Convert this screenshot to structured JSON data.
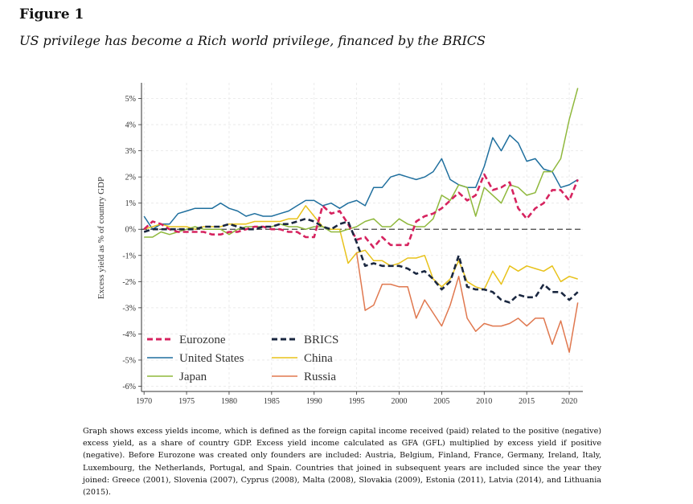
{
  "figure": {
    "label": "Figure 1",
    "title": "US privilege has become a Rich world privilege, financed by the BRICS",
    "caption": "Graph shows excess yields income, which is defined as the foreign capital income received (paid) related to the positive (negative) excess yield, as a share of country GDP. Excess yield income calculated as GFA (GFL) multiplied by excess yield if positive (negative). Before Eurozone was created only founders are included: Austria, Belgium, Finland, France, Germany, Ireland, Italy, Luxembourg, the Netherlands, Portugal, and Spain. Countries that joined in subsequent years are included since the year they joined: Greece (2001), Slovenia (2007), Cyprus (2008), Malta (2008), Slovakia (2009), Estonia (2011), Latvia (2014), and Lithuania (2015)."
  },
  "chart_data": {
    "type": "line",
    "title": "",
    "xlabel": "",
    "ylabel": "Excess yield as % of country GDP",
    "xlim": [
      1969.7,
      2021.6
    ],
    "ylim": [
      -6.2,
      5.6
    ],
    "xticks": [
      1970,
      1975,
      1980,
      1985,
      1990,
      1995,
      2000,
      2005,
      2010,
      2015,
      2020
    ],
    "yticks": [
      5,
      4,
      3,
      2,
      1,
      0,
      -1,
      -2,
      -3,
      -4,
      -5,
      -6
    ],
    "ytick_labels": [
      "5%",
      "4%",
      "3%",
      "2%",
      "1%",
      "0%",
      "-1%",
      "-2%",
      "-3%",
      "-4%",
      "-5%",
      "-6%"
    ],
    "grid": true,
    "reference_line": {
      "y": 0,
      "style": "dashed",
      "color": "#444444"
    },
    "legend_position": "bottom-left",
    "legend_order": [
      "Eurozone",
      "BRICS",
      "United States",
      "China",
      "Japan",
      "Russia"
    ],
    "series": [
      {
        "name": "Eurozone",
        "color": "#d6235f",
        "dashed": true,
        "width": 2.6,
        "x": [
          1970,
          1971,
          1972,
          1973,
          1974,
          1975,
          1976,
          1977,
          1978,
          1979,
          1980,
          1981,
          1982,
          1983,
          1984,
          1985,
          1986,
          1987,
          1988,
          1989,
          1990,
          1991,
          1992,
          1993,
          1994,
          1995,
          1996,
          1997,
          1998,
          1999,
          2000,
          2001,
          2002,
          2003,
          2004,
          2005,
          2006,
          2007,
          2008,
          2009,
          2010,
          2011,
          2012,
          2013,
          2014,
          2015,
          2016,
          2017,
          2018,
          2019,
          2020,
          2021
        ],
        "values": [
          0.0,
          0.3,
          0.2,
          0.0,
          -0.1,
          -0.1,
          -0.1,
          -0.1,
          -0.2,
          -0.2,
          -0.1,
          -0.1,
          0.0,
          0.1,
          0.1,
          0.0,
          0.0,
          -0.1,
          -0.1,
          -0.3,
          -0.3,
          0.9,
          0.6,
          0.7,
          0.2,
          -0.4,
          -0.3,
          -0.7,
          -0.3,
          -0.6,
          -0.6,
          -0.6,
          0.3,
          0.5,
          0.6,
          0.8,
          1.1,
          1.4,
          1.1,
          1.3,
          2.1,
          1.5,
          1.6,
          1.8,
          0.8,
          0.4,
          0.8,
          1.0,
          1.5,
          1.5,
          1.1,
          1.9
        ]
      },
      {
        "name": "BRICS",
        "color": "#1a2740",
        "dashed": true,
        "width": 2.6,
        "x": [
          1970,
          1971,
          1972,
          1973,
          1974,
          1975,
          1976,
          1977,
          1978,
          1979,
          1980,
          1981,
          1982,
          1983,
          1984,
          1985,
          1986,
          1987,
          1988,
          1989,
          1990,
          1991,
          1992,
          1993,
          1994,
          1995,
          1996,
          1997,
          1998,
          1999,
          2000,
          2001,
          2002,
          2003,
          2004,
          2005,
          2006,
          2007,
          2008,
          2009,
          2010,
          2011,
          2012,
          2013,
          2014,
          2015,
          2016,
          2017,
          2018,
          2019,
          2020,
          2021
        ],
        "values": [
          -0.1,
          0.0,
          0.0,
          0.0,
          0.0,
          0.0,
          0.0,
          0.1,
          0.1,
          0.1,
          0.2,
          0.1,
          0.0,
          0.0,
          0.1,
          0.1,
          0.2,
          0.2,
          0.3,
          0.4,
          0.3,
          0.1,
          0.0,
          0.2,
          0.3,
          -0.5,
          -1.4,
          -1.3,
          -1.4,
          -1.4,
          -1.4,
          -1.5,
          -1.7,
          -1.6,
          -1.9,
          -2.3,
          -2.0,
          -1.0,
          -2.2,
          -2.3,
          -2.3,
          -2.4,
          -2.7,
          -2.8,
          -2.5,
          -2.6,
          -2.6,
          -2.1,
          -2.4,
          -2.4,
          -2.7,
          -2.4
        ]
      },
      {
        "name": "United States",
        "color": "#1f6f9e",
        "dashed": false,
        "width": 1.5,
        "x": [
          1970,
          1971,
          1972,
          1973,
          1974,
          1975,
          1976,
          1977,
          1978,
          1979,
          1980,
          1981,
          1982,
          1983,
          1984,
          1985,
          1986,
          1987,
          1988,
          1989,
          1990,
          1991,
          1992,
          1993,
          1994,
          1995,
          1996,
          1997,
          1998,
          1999,
          2000,
          2001,
          2002,
          2003,
          2004,
          2005,
          2006,
          2007,
          2008,
          2009,
          2010,
          2011,
          2012,
          2013,
          2014,
          2015,
          2016,
          2017,
          2018,
          2019,
          2020,
          2021
        ],
        "values": [
          0.5,
          0.0,
          0.2,
          0.2,
          0.6,
          0.7,
          0.8,
          0.8,
          0.8,
          1.0,
          0.8,
          0.7,
          0.5,
          0.6,
          0.5,
          0.5,
          0.6,
          0.7,
          0.9,
          1.1,
          1.1,
          0.9,
          1.0,
          0.8,
          1.0,
          1.1,
          0.9,
          1.6,
          1.6,
          2.0,
          2.1,
          2.0,
          1.9,
          2.0,
          2.2,
          2.7,
          1.9,
          1.7,
          1.6,
          1.6,
          2.4,
          3.5,
          3.0,
          3.6,
          3.3,
          2.6,
          2.7,
          2.3,
          2.2,
          1.6,
          1.7,
          1.9
        ]
      },
      {
        "name": "China",
        "color": "#e8c21a",
        "dashed": false,
        "width": 1.5,
        "x": [
          1970,
          1971,
          1972,
          1973,
          1974,
          1975,
          1976,
          1977,
          1978,
          1979,
          1980,
          1981,
          1982,
          1983,
          1984,
          1985,
          1986,
          1987,
          1988,
          1989,
          1990,
          1991,
          1992,
          1993,
          1994,
          1995,
          1996,
          1997,
          1998,
          1999,
          2000,
          2001,
          2002,
          2003,
          2004,
          2005,
          2006,
          2007,
          2008,
          2009,
          2010,
          2011,
          2012,
          2013,
          2014,
          2015,
          2016,
          2017,
          2018,
          2019,
          2020,
          2021
        ],
        "values": [
          0.0,
          0.1,
          0.2,
          0.1,
          0.1,
          0.1,
          0.0,
          0.1,
          0.1,
          0.1,
          0.2,
          0.2,
          0.2,
          0.3,
          0.3,
          0.3,
          0.3,
          0.4,
          0.4,
          0.9,
          0.5,
          0.1,
          0.0,
          0.0,
          -1.3,
          -0.9,
          -0.8,
          -1.2,
          -1.2,
          -1.4,
          -1.3,
          -1.1,
          -1.1,
          -1.0,
          -1.9,
          -2.2,
          -1.9,
          -1.2,
          -2.0,
          -2.2,
          -2.3,
          -1.6,
          -2.1,
          -1.4,
          -1.6,
          -1.4,
          -1.5,
          -1.6,
          -1.4,
          -2.0,
          -1.8,
          -1.9
        ]
      },
      {
        "name": "Japan",
        "color": "#8fb83c",
        "dashed": false,
        "width": 1.5,
        "x": [
          1970,
          1971,
          1972,
          1973,
          1974,
          1975,
          1976,
          1977,
          1978,
          1979,
          1980,
          1981,
          1982,
          1983,
          1984,
          1985,
          1986,
          1987,
          1988,
          1989,
          1990,
          1991,
          1992,
          1993,
          1994,
          1995,
          1996,
          1997,
          1998,
          1999,
          2000,
          2001,
          2002,
          2003,
          2004,
          2005,
          2006,
          2007,
          2008,
          2009,
          2010,
          2011,
          2012,
          2013,
          2014,
          2015,
          2016,
          2017,
          2018,
          2019,
          2020,
          2021
        ],
        "values": [
          -0.3,
          -0.3,
          -0.1,
          -0.2,
          -0.1,
          0.0,
          0.1,
          0.0,
          0.0,
          0.0,
          -0.2,
          0.0,
          0.1,
          0.1,
          0.1,
          0.1,
          0.2,
          0.1,
          0.1,
          0.0,
          0.1,
          0.1,
          -0.1,
          -0.1,
          0.0,
          0.1,
          0.3,
          0.4,
          0.1,
          0.1,
          0.4,
          0.2,
          0.1,
          0.1,
          0.4,
          1.3,
          1.1,
          1.7,
          1.6,
          0.5,
          1.6,
          1.3,
          1.0,
          1.7,
          1.6,
          1.3,
          1.4,
          2.2,
          2.2,
          2.7,
          4.2,
          5.4
        ]
      },
      {
        "name": "Russia",
        "color": "#e0784f",
        "dashed": false,
        "width": 1.5,
        "x": [
          1995,
          1996,
          1997,
          1998,
          1999,
          2000,
          2001,
          2002,
          2003,
          2004,
          2005,
          2006,
          2007,
          2008,
          2009,
          2010,
          2011,
          2012,
          2013,
          2014,
          2015,
          2016,
          2017,
          2018,
          2019,
          2020,
          2021
        ],
        "values": [
          -0.9,
          -3.1,
          -2.9,
          -2.1,
          -2.1,
          -2.2,
          -2.2,
          -3.4,
          -2.7,
          -3.2,
          -3.7,
          -2.9,
          -1.8,
          -3.4,
          -3.9,
          -3.6,
          -3.7,
          -3.7,
          -3.6,
          -3.4,
          -3.7,
          -3.4,
          -3.4,
          -4.4,
          -3.5,
          -4.7,
          -2.8
        ]
      }
    ]
  }
}
